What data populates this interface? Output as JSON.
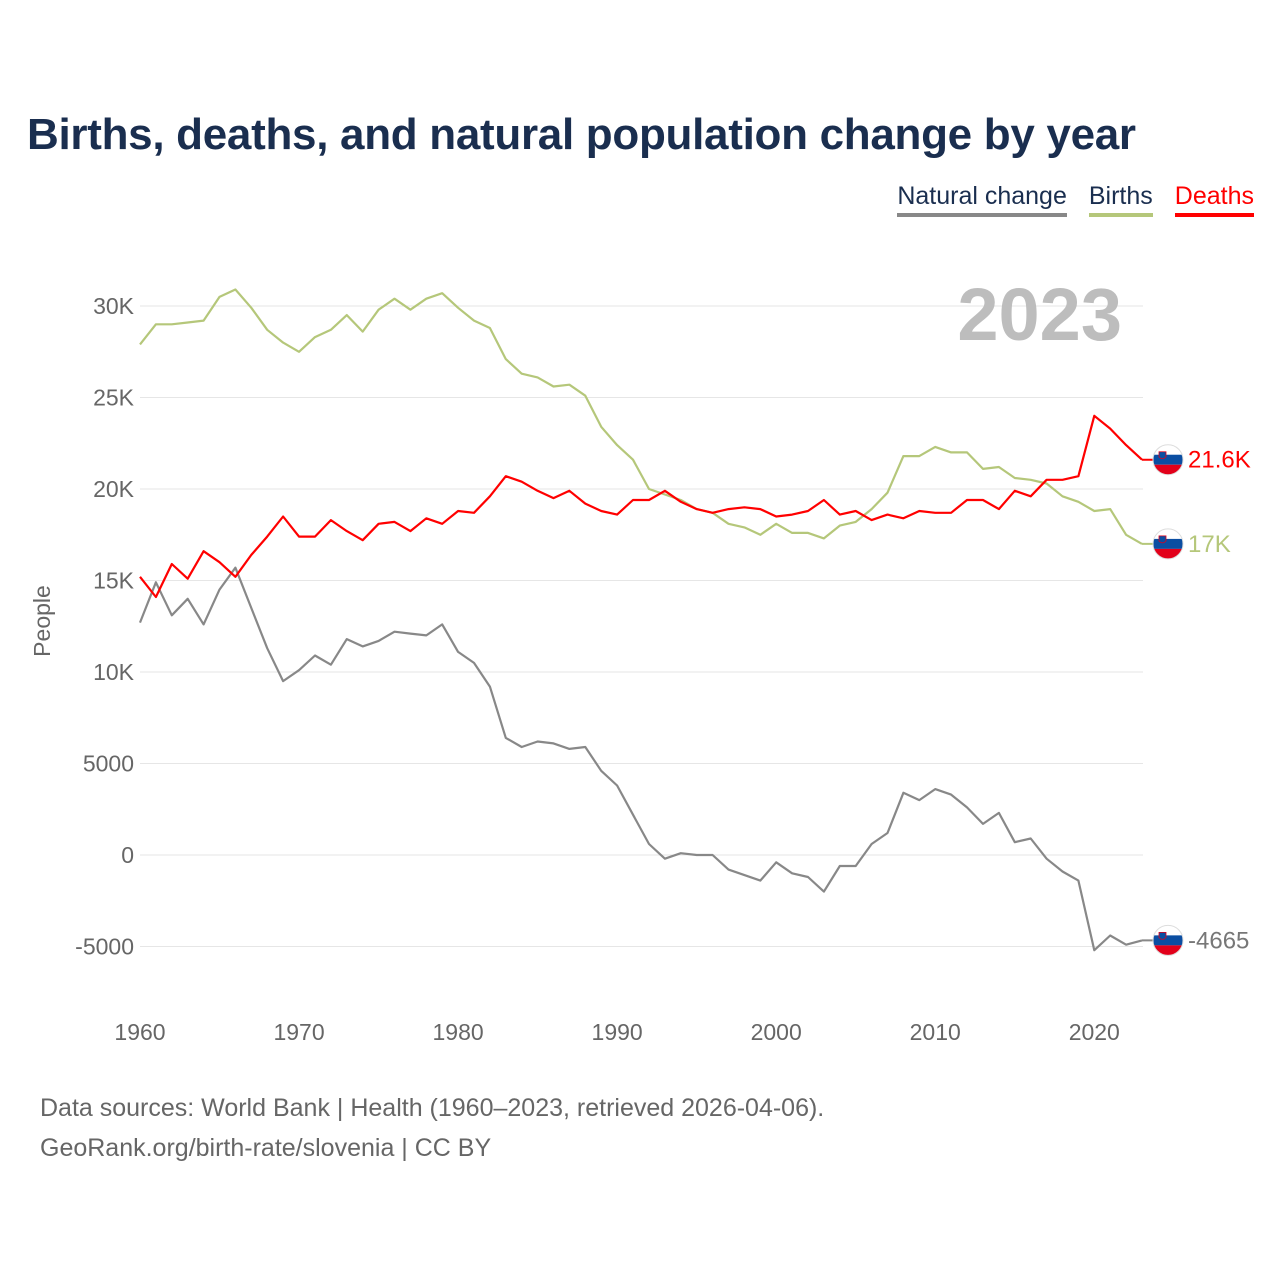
{
  "title": "Births, deaths, and natural population change by year",
  "legend": [
    {
      "label": "Natural change",
      "color": "#888888",
      "text_color": "#1a2e4f"
    },
    {
      "label": "Births",
      "color": "#b5c77a",
      "text_color": "#1a2e4f"
    },
    {
      "label": "Deaths",
      "color": "#ff0000",
      "text_color": "#ff0000"
    }
  ],
  "source_lines": [
    "Data sources: World Bank | Health (1960–2023, retrieved 2026-04-06).",
    "GeoRank.org/birth-rate/slovenia | CC BY"
  ],
  "chart_data": {
    "type": "line",
    "title": "Births, deaths, and natural population change by year",
    "ylabel": "People",
    "xlabel": "",
    "year_label": "2023",
    "xlim": [
      1960,
      2023
    ],
    "ylim": [
      -7000,
      33000
    ],
    "grid": true,
    "legend_position": "top-right",
    "x_ticks": [
      "1960",
      "1970",
      "1980",
      "1990",
      "2000",
      "2010",
      "2020"
    ],
    "y_ticks": [
      {
        "v": 30000,
        "label": "30K"
      },
      {
        "v": 25000,
        "label": "25K"
      },
      {
        "v": 20000,
        "label": "20K"
      },
      {
        "v": 15000,
        "label": "15K"
      },
      {
        "v": 10000,
        "label": "10K"
      },
      {
        "v": 5000,
        "label": "5000"
      },
      {
        "v": 0,
        "label": "0"
      },
      {
        "v": -5000,
        "label": "-5000"
      }
    ],
    "x_start": 1960,
    "series": [
      {
        "name": "Births",
        "color": "#b5c77a",
        "end_label": "17K",
        "values": [
          27900,
          29000,
          29000,
          29100,
          29200,
          30500,
          30900,
          29900,
          28700,
          28000,
          27500,
          28300,
          28700,
          29500,
          28600,
          29800,
          30400,
          29800,
          30400,
          30700,
          29900,
          29200,
          28800,
          27100,
          26300,
          26100,
          25600,
          25700,
          25100,
          23400,
          22400,
          21600,
          20000,
          19700,
          19400,
          18900,
          18700,
          18100,
          17900,
          17500,
          18100,
          17600,
          17600,
          17300,
          18000,
          18200,
          18900,
          19800,
          21800,
          21800,
          22300,
          22000,
          22000,
          21100,
          21200,
          20600,
          20500,
          20300,
          19600,
          19300,
          18800,
          18900,
          17500,
          17000
        ]
      },
      {
        "name": "Deaths",
        "color": "#ff0000",
        "end_label": "21.6K",
        "values": [
          15200,
          14100,
          15900,
          15100,
          16600,
          16000,
          15200,
          16400,
          17400,
          18500,
          17400,
          17400,
          18300,
          17700,
          17200,
          18100,
          18200,
          17700,
          18400,
          18100,
          18800,
          18700,
          19600,
          20700,
          20400,
          19900,
          19500,
          19900,
          19200,
          18800,
          18600,
          19400,
          19400,
          19900,
          19300,
          18900,
          18700,
          18900,
          19000,
          18900,
          18500,
          18600,
          18800,
          19400,
          18600,
          18800,
          18300,
          18600,
          18400,
          18800,
          18700,
          18700,
          19400,
          19400,
          18900,
          19900,
          19600,
          20500,
          20500,
          20700,
          24000,
          23300,
          22400,
          21600
        ]
      },
      {
        "name": "Natural change",
        "color": "#888888",
        "end_label": "-4665",
        "values": [
          12700,
          14900,
          13100,
          14000,
          12600,
          14500,
          15700,
          13500,
          11300,
          9500,
          10100,
          10900,
          10400,
          11800,
          11400,
          11700,
          12200,
          12100,
          12000,
          12600,
          11100,
          10500,
          9200,
          6400,
          5900,
          6200,
          6100,
          5800,
          5900,
          4600,
          3800,
          2200,
          600,
          -200,
          100,
          0,
          0,
          -800,
          -1100,
          -1400,
          -400,
          -1000,
          -1200,
          -2000,
          -600,
          -600,
          600,
          1200,
          3400,
          3000,
          3600,
          3300,
          2600,
          1700,
          2300,
          700,
          900,
          -200,
          -900,
          -1400,
          -5200,
          -4400,
          -4900,
          -4665
        ]
      }
    ]
  }
}
